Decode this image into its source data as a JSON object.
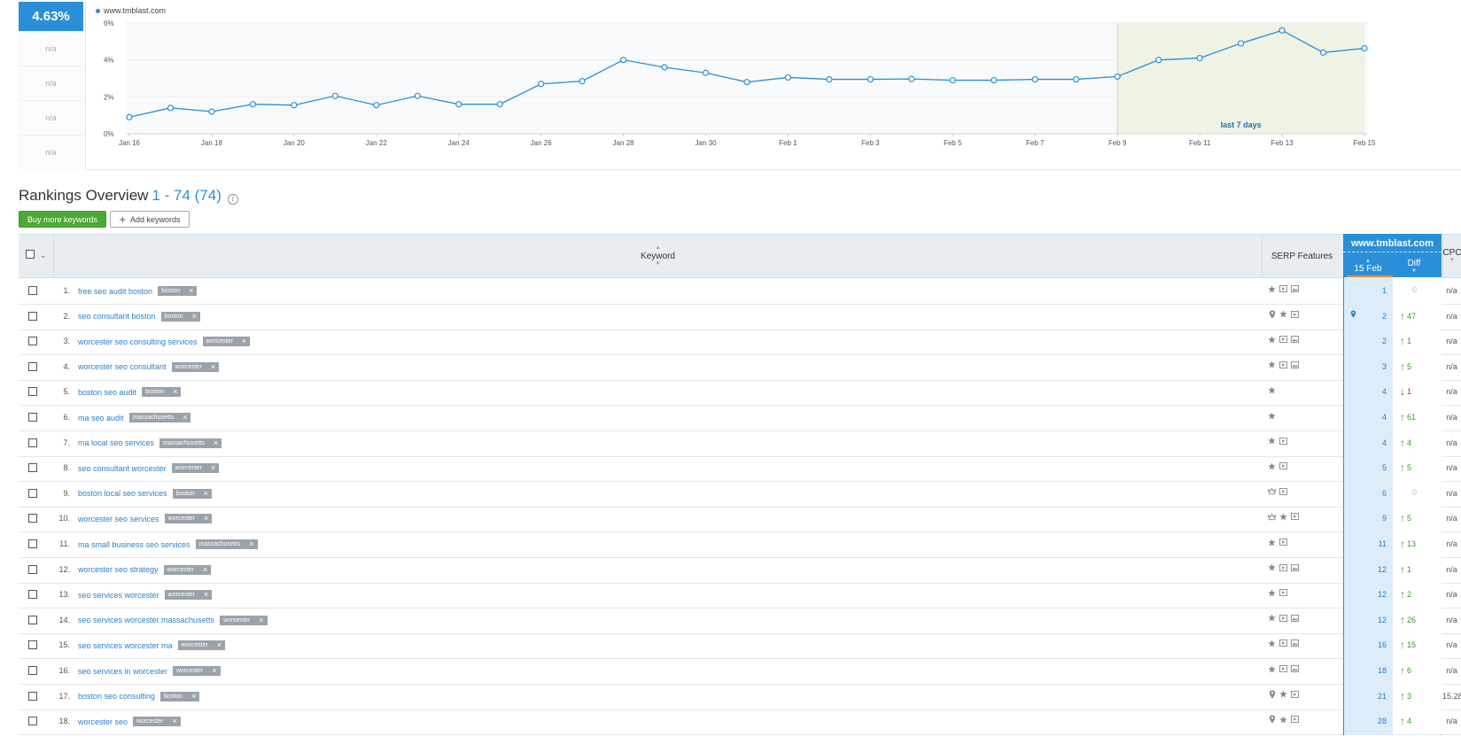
{
  "metric": {
    "value": "4.63%",
    "na_items": [
      "n/a",
      "n/a",
      "n/a",
      "n/a"
    ]
  },
  "chart_data": {
    "type": "line",
    "series": [
      {
        "name": "www.tmblast.com",
        "values": [
          0.9,
          1.4,
          1.2,
          1.6,
          1.55,
          2.05,
          1.55,
          2.05,
          1.6,
          1.6,
          2.7,
          2.85,
          4.0,
          3.6,
          3.3,
          2.8,
          3.05,
          2.95,
          2.95,
          2.97,
          2.9,
          2.9,
          2.95,
          2.95,
          3.1,
          4.0,
          4.1,
          4.9,
          5.6,
          4.4,
          4.63
        ]
      }
    ],
    "x": [
      "Jan 16",
      "Jan 17",
      "Jan 18",
      "Jan 19",
      "Jan 20",
      "Jan 21",
      "Jan 22",
      "Jan 23",
      "Jan 24",
      "Jan 25",
      "Jan 26",
      "Jan 27",
      "Jan 28",
      "Jan 29",
      "Jan 30",
      "Jan 31",
      "Feb 1",
      "Feb 2",
      "Feb 3",
      "Feb 4",
      "Feb 5",
      "Feb 6",
      "Feb 7",
      "Feb 8",
      "Feb 9",
      "Feb 10",
      "Feb 11",
      "Feb 12",
      "Feb 13",
      "Feb 14",
      "Feb 15"
    ],
    "x_tick_labels": [
      "Jan 16",
      "Jan 18",
      "Jan 20",
      "Jan 22",
      "Jan 24",
      "Jan 26",
      "Jan 28",
      "Jan 30",
      "Feb 1",
      "Feb 3",
      "Feb 5",
      "Feb 7",
      "Feb 9",
      "Feb 11",
      "Feb 13",
      "Feb 15"
    ],
    "y_tick_labels": [
      "0%",
      "2%",
      "4%",
      "6%"
    ],
    "ylim": [
      0,
      6
    ],
    "grid": true,
    "highlight": {
      "from": "Feb 9",
      "to": "Feb 15",
      "label": "last 7 days"
    },
    "colors": {
      "line": "#2a8fd8",
      "highlight": "#eef3e4"
    }
  },
  "section": {
    "title": "Rankings Overview",
    "range": "1 - 74 (74)",
    "info": "i"
  },
  "buttons": {
    "buy": "Buy more keywords",
    "add": "Add keywords",
    "add_icon": "+"
  },
  "header": {
    "keyword": "Keyword",
    "serp": "SERP Features",
    "domain": "www.tmblast.com",
    "date": "15 Feb",
    "diff": "Diff",
    "cpc": "CPC"
  },
  "rows": [
    {
      "n": "1.",
      "kw": "free seo audit boston",
      "tag": "boston",
      "serp": [
        "star-icon",
        "video-icon",
        "image-icon"
      ],
      "pos": "1",
      "dir": "zero",
      "diff": "0",
      "cpc": "n/a"
    },
    {
      "n": "2.",
      "kw": "seo consultant boston",
      "tag": "boston",
      "serp": [
        "local-pin-icon",
        "star-icon",
        "video-icon"
      ],
      "pin": true,
      "pos": "2",
      "dir": "up",
      "diff": "47",
      "cpc": "n/a"
    },
    {
      "n": "3.",
      "kw": "worcester seo consulting services",
      "tag": "worcester",
      "serp": [
        "star-icon",
        "video-icon",
        "image-icon"
      ],
      "pos": "2",
      "dir": "up",
      "diff": "1",
      "cpc": "n/a"
    },
    {
      "n": "4.",
      "kw": "worcester seo consultant",
      "tag": "worcester",
      "serp": [
        "star-icon",
        "video-icon",
        "image-icon"
      ],
      "pos": "3",
      "dir": "up",
      "diff": "5",
      "cpc": "n/a"
    },
    {
      "n": "5.",
      "kw": "boston seo audit",
      "tag": "boston",
      "serp": [
        "star-icon"
      ],
      "pos": "4",
      "dir": "down",
      "diff": "1",
      "cpc": "n/a"
    },
    {
      "n": "6.",
      "kw": "ma seo audit",
      "tag": "massachusetts",
      "serp": [
        "star-icon"
      ],
      "pos": "4",
      "dir": "up",
      "diff": "61",
      "cpc": "n/a"
    },
    {
      "n": "7.",
      "kw": "ma local seo services",
      "tag": "massachusetts",
      "serp": [
        "star-icon",
        "video-icon"
      ],
      "pos": "4",
      "dir": "up",
      "diff": "4",
      "cpc": "n/a"
    },
    {
      "n": "8.",
      "kw": "seo consultant worcester",
      "tag": "worcester",
      "serp": [
        "star-icon",
        "video-icon"
      ],
      "pos": "5",
      "dir": "up",
      "diff": "5",
      "cpc": "n/a"
    },
    {
      "n": "9.",
      "kw": "boston local seo services",
      "tag": "boston",
      "serp": [
        "crown-icon",
        "video-icon"
      ],
      "pos": "6",
      "dir": "zero",
      "diff": "0",
      "cpc": "n/a"
    },
    {
      "n": "10.",
      "kw": "worcester seo services",
      "tag": "worcester",
      "serp": [
        "crown-icon",
        "star-icon",
        "video-icon"
      ],
      "pos": "9",
      "dir": "up",
      "diff": "5",
      "cpc": "n/a"
    },
    {
      "n": "11.",
      "kw": "ma small business seo services",
      "tag": "massachusetts",
      "serp": [
        "star-icon",
        "video-icon"
      ],
      "pos": "11",
      "dir": "up",
      "diff": "13",
      "cpc": "n/a"
    },
    {
      "n": "12.",
      "kw": "worcester seo strategy",
      "tag": "worcester",
      "serp": [
        "star-icon",
        "video-icon",
        "image-icon"
      ],
      "pos": "12",
      "dir": "up",
      "diff": "1",
      "cpc": "n/a"
    },
    {
      "n": "13.",
      "kw": "seo services worcester",
      "tag": "worcester",
      "serp": [
        "star-icon",
        "video-icon"
      ],
      "pos": "12",
      "dir": "up",
      "diff": "2",
      "cpc": "n/a"
    },
    {
      "n": "14.",
      "kw": "seo services worcester massachusetts",
      "tag": "worcester",
      "serp": [
        "star-icon",
        "video-icon",
        "image-icon"
      ],
      "pos": "12",
      "dir": "up",
      "diff": "26",
      "cpc": "n/a"
    },
    {
      "n": "15.",
      "kw": "seo services worcester ma",
      "tag": "worcester",
      "serp": [
        "star-icon",
        "video-icon",
        "image-icon"
      ],
      "pos": "16",
      "dir": "up",
      "diff": "15",
      "cpc": "n/a"
    },
    {
      "n": "16.",
      "kw": "seo services in worcester",
      "tag": "worcester",
      "serp": [
        "star-icon",
        "video-icon",
        "image-icon"
      ],
      "pos": "18",
      "dir": "up",
      "diff": "6",
      "cpc": "n/a"
    },
    {
      "n": "17.",
      "kw": "boston seo consulting",
      "tag": "boston",
      "serp": [
        "local-pin-icon",
        "star-icon",
        "video-icon"
      ],
      "pos": "21",
      "dir": "up",
      "diff": "3",
      "cpc": "15.28"
    },
    {
      "n": "18.",
      "kw": "worcester seo",
      "tag": "worcester",
      "serp": [
        "local-pin-icon",
        "star-icon",
        "video-icon"
      ],
      "pos": "28",
      "dir": "up",
      "diff": "4",
      "cpc": "n/a"
    }
  ]
}
